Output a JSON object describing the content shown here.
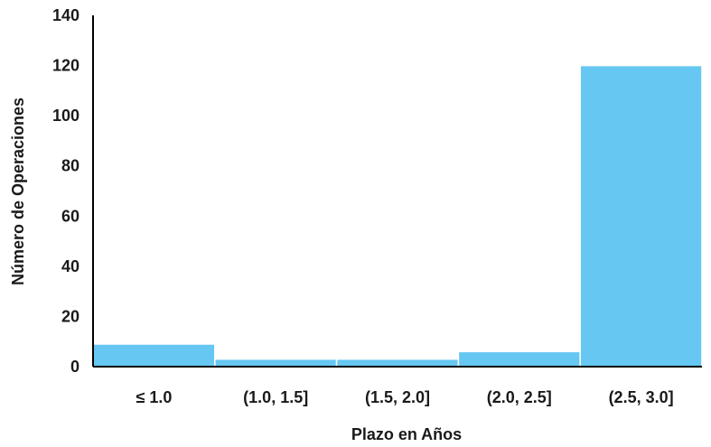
{
  "chart_data": {
    "type": "bar",
    "title": "",
    "xlabel": "Plazo en Años",
    "ylabel": "Número de Operaciones",
    "categories": [
      "≤ 1.0",
      "(1.0, 1.5]",
      "(1.5, 2.0]",
      "(2.0, 2.5]",
      "(2.5, 3.0]"
    ],
    "values": [
      9,
      3,
      3,
      6,
      120
    ],
    "ylim": [
      0,
      140
    ],
    "yticks": [
      0,
      20,
      40,
      60,
      80,
      100,
      120,
      140
    ],
    "grid": false,
    "legend": "none",
    "bar_color": "#66c8f2",
    "axis_color": "#000000"
  }
}
